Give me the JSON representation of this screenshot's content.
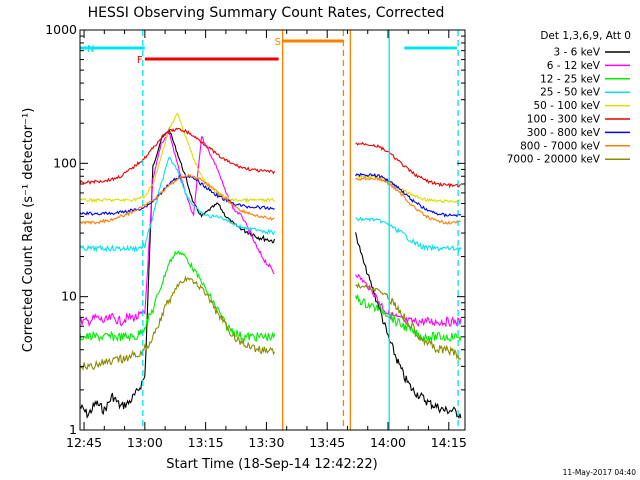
{
  "chart_data": {
    "type": "line",
    "title": "HESSI Observing Summary Count Rates, Corrected",
    "xlabel": "Start Time (18-Sep-14 12:42:22)",
    "ylabel": "Corrected Count Rate (s⁻¹ detector⁻¹)",
    "footer": "11-May-2017 04:40",
    "xlim": [
      2.0,
      97.0
    ],
    "ylim": [
      1,
      1000
    ],
    "yscale": "log",
    "x_ticks": [
      {
        "minute": 3,
        "label": "12:45"
      },
      {
        "minute": 18,
        "label": "13:00"
      },
      {
        "minute": 33,
        "label": "13:15"
      },
      {
        "minute": 48,
        "label": "13:30"
      },
      {
        "minute": 63,
        "label": "13:45"
      },
      {
        "minute": 78,
        "label": "14:00"
      },
      {
        "minute": 93,
        "label": "14:15"
      }
    ],
    "y_ticks": [
      {
        "value": 1,
        "label": "1"
      },
      {
        "value": 10,
        "label": "10"
      },
      {
        "value": 100,
        "label": "100"
      },
      {
        "value": 1000,
        "label": "1000"
      }
    ],
    "legend_header": "Det 1,3,6,9, Att 0",
    "legend_position": "right",
    "annotations": [
      {
        "text": "N",
        "color": "#00e5ee"
      },
      {
        "text": "F",
        "color": "#ee0000"
      },
      {
        "text": "S",
        "color": "#ff8000"
      }
    ],
    "x": [
      2,
      4,
      6,
      8,
      10,
      12,
      14,
      16,
      18,
      20,
      22,
      24,
      26,
      28,
      30,
      32,
      34,
      36,
      38,
      40,
      42,
      44,
      46,
      48,
      50,
      54,
      60,
      66,
      70,
      72,
      74,
      76,
      78,
      80,
      82,
      84,
      86,
      88,
      90,
      92,
      94,
      96
    ],
    "series": [
      {
        "name": "3 - 6 keV",
        "color": "#000000",
        "values": [
          1.5,
          1.3,
          1.6,
          1.4,
          1.8,
          1.5,
          1.6,
          1.9,
          2.5,
          95,
          150,
          180,
          120,
          80,
          50,
          40,
          45,
          50,
          40,
          35,
          32,
          30,
          28,
          27,
          26,
          null,
          null,
          null,
          30,
          18,
          12,
          8,
          5,
          3.5,
          2.5,
          2,
          1.8,
          1.6,
          1.5,
          1.4,
          1.4,
          1.3
        ]
      },
      {
        "name": "6 - 12 keV",
        "color": "#ff00ff",
        "values": [
          6.5,
          6.5,
          7,
          6.5,
          7,
          6.5,
          7,
          7,
          7.5,
          75,
          140,
          170,
          100,
          60,
          40,
          160,
          120,
          90,
          60,
          45,
          40,
          30,
          22,
          18,
          15,
          null,
          null,
          null,
          15,
          13,
          11,
          9,
          7.5,
          7,
          6.5,
          6.5,
          6.5,
          6.5,
          6.5,
          6.5,
          6.5,
          6.5
        ]
      },
      {
        "name": "12 - 25 keV",
        "color": "#00ee00",
        "values": [
          5,
          5,
          5,
          5,
          5,
          5,
          5,
          5,
          6,
          8,
          12,
          18,
          22,
          20,
          16,
          13,
          10,
          8,
          6,
          5.5,
          5,
          5,
          5,
          5,
          5,
          null,
          null,
          null,
          10,
          9,
          8.5,
          8,
          7.5,
          6.5,
          6,
          5.5,
          5,
          5,
          5,
          5,
          5,
          5
        ]
      },
      {
        "name": "25 - 50 keV",
        "color": "#00e5ee",
        "values": [
          23,
          23,
          23,
          23,
          23,
          23,
          23,
          23,
          24,
          40,
          70,
          110,
          90,
          60,
          48,
          42,
          40,
          40,
          38,
          35,
          33,
          32,
          32,
          31,
          30,
          null,
          null,
          null,
          38,
          38,
          38,
          37,
          35,
          32,
          29,
          26,
          24,
          23,
          23,
          23,
          23,
          23
        ]
      },
      {
        "name": "50 - 100 keV",
        "color": "#dddd00",
        "values": [
          53,
          53,
          53,
          53,
          53,
          53,
          53,
          54,
          56,
          70,
          110,
          180,
          240,
          160,
          110,
          80,
          65,
          60,
          55,
          53,
          53,
          53,
          53,
          53,
          53,
          null,
          null,
          null,
          80,
          80,
          80,
          78,
          74,
          67,
          62,
          58,
          55,
          53,
          52,
          52,
          52,
          52
        ]
      },
      {
        "name": "100 - 300 keV",
        "color": "#ee0000",
        "values": [
          72,
          72,
          73,
          74,
          76,
          80,
          88,
          98,
          110,
          130,
          155,
          175,
          180,
          175,
          160,
          145,
          130,
          115,
          105,
          98,
          93,
          90,
          88,
          87,
          86,
          null,
          null,
          null,
          140,
          140,
          138,
          132,
          122,
          108,
          95,
          85,
          78,
          73,
          70,
          69,
          68,
          68
        ]
      },
      {
        "name": "300 - 800 keV",
        "color": "#0000ff",
        "values": [
          42,
          42,
          42,
          42,
          42,
          43,
          44,
          45,
          47,
          52,
          60,
          70,
          78,
          80,
          77,
          70,
          63,
          57,
          53,
          50,
          48,
          47,
          47,
          46,
          46,
          null,
          null,
          null,
          82,
          82,
          82,
          80,
          75,
          68,
          60,
          53,
          48,
          44,
          42,
          41,
          41,
          41
        ]
      },
      {
        "name": "800 - 7000 keV",
        "color": "#ff8000",
        "values": [
          36,
          36,
          36,
          37,
          38,
          40,
          42,
          45,
          48,
          53,
          60,
          68,
          76,
          81,
          80,
          75,
          68,
          60,
          54,
          48,
          44,
          42,
          40,
          39,
          38,
          null,
          null,
          null,
          76,
          77,
          77,
          76,
          71,
          64,
          56,
          48,
          43,
          39,
          37,
          36,
          36,
          36
        ]
      },
      {
        "name": "7000 - 20000 keV",
        "color": "#8b8b00",
        "values": [
          3,
          3,
          3.1,
          3.2,
          3.2,
          3.4,
          3.5,
          3.7,
          4,
          5,
          7,
          9.5,
          12,
          13.5,
          13,
          11.5,
          9.5,
          7.5,
          6,
          5,
          4.5,
          4.2,
          4,
          4,
          4,
          null,
          null,
          null,
          12,
          12,
          11.5,
          11,
          10,
          8.5,
          7,
          6,
          5,
          4.5,
          4,
          4,
          3.8,
          3.5
        ]
      }
    ],
    "bars": [
      {
        "label": "N",
        "color": "#00e5ee",
        "from": 2.0,
        "to": 18.0
      },
      {
        "label": "",
        "color": "#00e5ee",
        "from": 82.0,
        "to": 95.0
      },
      {
        "label": "F",
        "color": "#ee0000",
        "from": 18.0,
        "to": 51.0
      },
      {
        "label": "S",
        "color": "#ff8000",
        "from": 52.0,
        "to": 67.0
      }
    ],
    "vlines": [
      {
        "minute": 17.5,
        "color": "#00e5ee",
        "dash": true
      },
      {
        "minute": 78.3,
        "color": "#00e5ee",
        "dash": false
      },
      {
        "minute": 95.3,
        "color": "#00e5ee",
        "dash": true
      },
      {
        "minute": 52.0,
        "color": "#ff8000",
        "dash": false
      },
      {
        "minute": 67.0,
        "color": "#ff8000",
        "dash": true
      },
      {
        "minute": 68.7,
        "color": "#ff8000",
        "dash": false
      }
    ]
  }
}
